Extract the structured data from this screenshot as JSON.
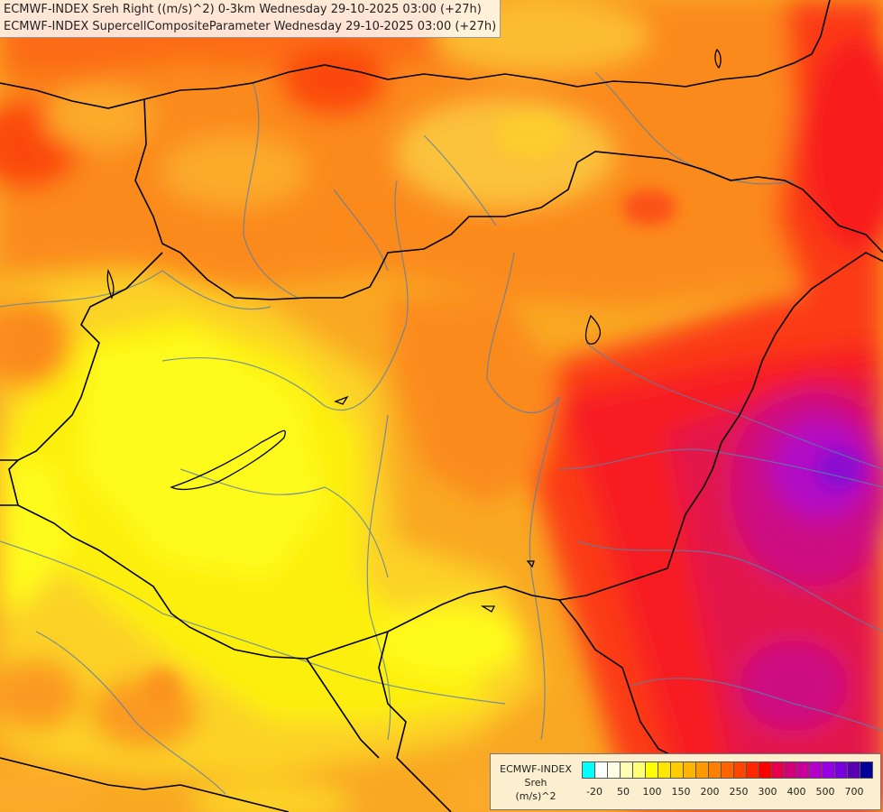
{
  "titles": {
    "line1": "ECMWF-INDEX Sreh Right ((m/s)^2) 0-3km Wednesday 29-10-2025 03:00 (+27h)",
    "line2": "ECMWF-INDEX SupercellCompositeParameter Wednesday 29-10-2025 03:00 (+27h)"
  },
  "legend": {
    "line1": "ECMWF-INDEX",
    "line2": "Sreh",
    "line3": "(m/s)^2",
    "colors": [
      "#00ffff",
      "#ffffff",
      "#ffffe6",
      "#ffffb4",
      "#ffff78",
      "#ffff00",
      "#ffe600",
      "#ffcc00",
      "#ffb400",
      "#ff9900",
      "#ff8000",
      "#ff6400",
      "#ff4600",
      "#ff2800",
      "#ff0000",
      "#e6004b",
      "#d20078",
      "#c8009b",
      "#b400c8",
      "#9600e6",
      "#7800dc",
      "#5a00b4",
      "#000096"
    ],
    "ticks": [
      "-20",
      "50",
      "100",
      "150",
      "200",
      "250",
      "300",
      "400",
      "500",
      "700"
    ]
  }
}
